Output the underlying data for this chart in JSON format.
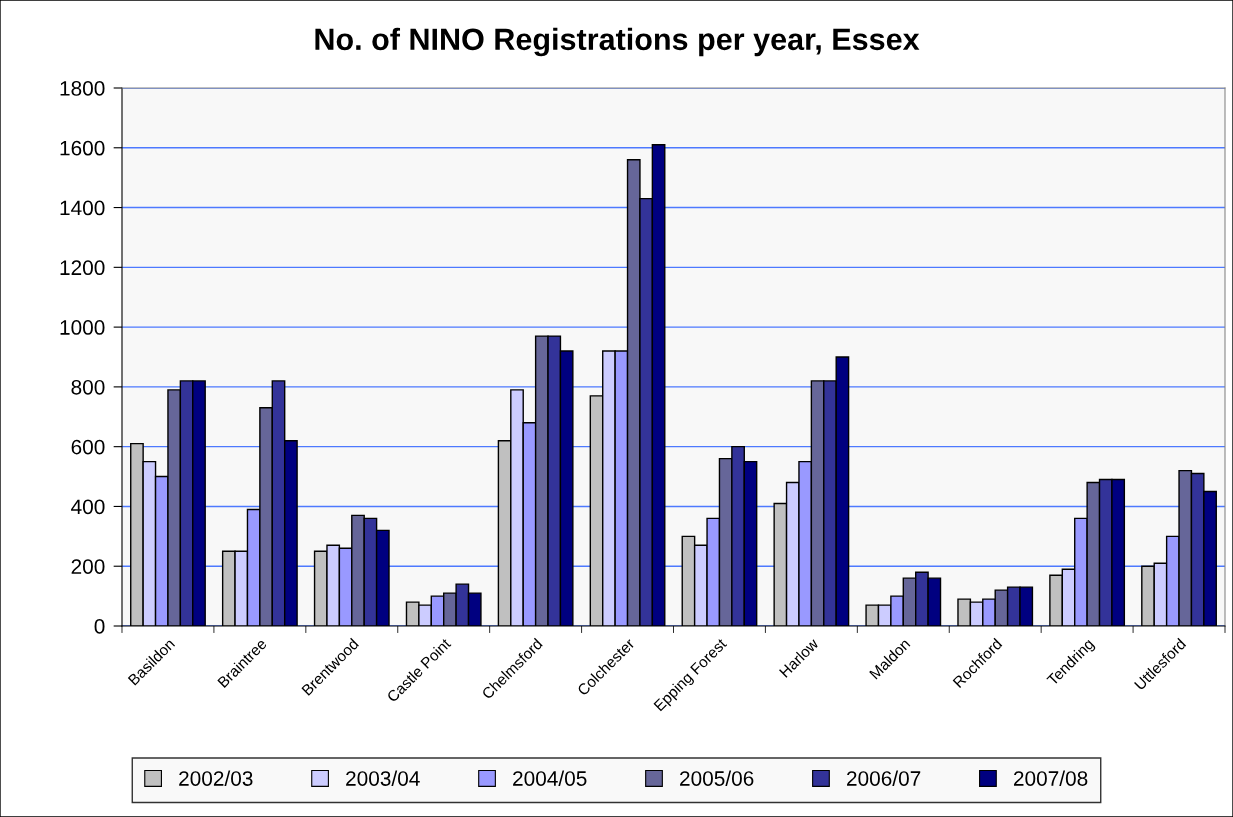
{
  "chart_data": {
    "type": "bar",
    "title": "No. of NINO Registrations per year, Essex",
    "categories": [
      "Basildon",
      "Braintree",
      "Brentwood",
      "Castle Point",
      "Chelmsford",
      "Colchester",
      "Epping Forest",
      "Harlow",
      "Maldon",
      "Rochford",
      "Tendring",
      "Uttlesford"
    ],
    "series": [
      {
        "name": "2002/03",
        "color": "#c0c0c0",
        "values": [
          610,
          250,
          250,
          80,
          620,
          770,
          300,
          410,
          70,
          90,
          170,
          200
        ]
      },
      {
        "name": "2003/04",
        "color": "#ccccff",
        "values": [
          550,
          250,
          270,
          70,
          790,
          920,
          270,
          480,
          70,
          80,
          190,
          210
        ]
      },
      {
        "name": "2004/05",
        "color": "#9999ff",
        "values": [
          500,
          390,
          260,
          100,
          680,
          920,
          360,
          550,
          100,
          90,
          360,
          300
        ]
      },
      {
        "name": "2005/06",
        "color": "#666699",
        "values": [
          790,
          730,
          370,
          110,
          970,
          1560,
          560,
          820,
          160,
          120,
          480,
          520
        ]
      },
      {
        "name": "2006/07",
        "color": "#333399",
        "values": [
          820,
          820,
          360,
          140,
          970,
          1430,
          600,
          820,
          180,
          130,
          490,
          510
        ]
      },
      {
        "name": "2007/08",
        "color": "#000080",
        "values": [
          820,
          620,
          320,
          110,
          920,
          1610,
          550,
          900,
          160,
          130,
          490,
          450
        ]
      }
    ],
    "ylim": [
      0,
      1800
    ],
    "yticks": [
      0,
      200,
      400,
      600,
      800,
      1000,
      1200,
      1400,
      1600,
      1800
    ],
    "grid": "y",
    "legend": "bottom"
  }
}
